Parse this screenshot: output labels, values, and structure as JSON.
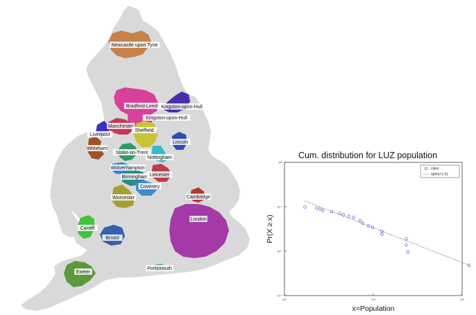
{
  "map": {
    "cities": [
      {
        "name": "Newcastle upon Tyne",
        "color": "#c6824a"
      },
      {
        "name": "Bradford-Leeds",
        "color": "#d9409a"
      },
      {
        "name": "Kingston-upon-Hull",
        "color": "#4b2fa8"
      },
      {
        "name": "Kingston-upon-Hull",
        "color": "#d9409a"
      },
      {
        "name": "Manchester",
        "color": "#c8375a"
      },
      {
        "name": "Sheffield",
        "color": "#c9c436"
      },
      {
        "name": "Liverpool",
        "color": "#3a2fc0"
      },
      {
        "name": "Lincoln",
        "color": "#2b4fb5"
      },
      {
        "name": "Wrexham",
        "color": "#a0502a"
      },
      {
        "name": "Stoke-on-Trent",
        "color": "#2e9a6a"
      },
      {
        "name": "Nottingham",
        "color": "#36b9c6"
      },
      {
        "name": "Wolverhampton",
        "color": "#3a7fd0"
      },
      {
        "name": "Birmingham",
        "color": "#2d8a8a"
      },
      {
        "name": "Leicester",
        "color": "#b8424a"
      },
      {
        "name": "Coventry",
        "color": "#3c8cd0"
      },
      {
        "name": "Worcester",
        "color": "#a3a033"
      },
      {
        "name": "Cambridge",
        "color": "#b03a30"
      },
      {
        "name": "London",
        "color": "#a33aa8"
      },
      {
        "name": "Cardiff",
        "color": "#3fc63a"
      },
      {
        "name": "Bristol",
        "color": "#3462b0"
      },
      {
        "name": "Exeter",
        "color": "#5b9a3a"
      },
      {
        "name": "Portsmouth",
        "color": "#4aa890"
      }
    ],
    "land_color": "#d9d9d9"
  },
  "chart_data": {
    "type": "scatter",
    "title": "Cum. distribution for LUZ population",
    "xlabel": "x=Population",
    "ylabel": "Pr(X ≥ x)",
    "xscale": "log",
    "yscale": "log",
    "xlim": [
      1,
      100
    ],
    "ylim": [
      0.001,
      1
    ],
    "xticks": [
      {
        "v": 1,
        "t": "10⁰"
      },
      {
        "v": 10,
        "t": "10¹"
      },
      {
        "v": 100,
        "t": "10²"
      }
    ],
    "yticks": [
      {
        "v": 1,
        "t": "10⁰"
      },
      {
        "v": 0.1,
        "t": "10⁻¹"
      },
      {
        "v": 0.01,
        "t": "10⁻²"
      },
      {
        "v": 0.001,
        "t": "10⁻³"
      }
    ],
    "series": [
      {
        "name": "cities",
        "marker": "circle",
        "color": "#3b3bd6",
        "x": [
          1.7,
          2.3,
          2.5,
          2.7,
          3.4,
          4.2,
          4.6,
          5.3,
          6.0,
          7.1,
          7.6,
          8.8,
          9.8,
          12.5,
          12.5,
          23.5,
          23.5,
          24.5,
          120
        ],
        "y": [
          0.099,
          0.093,
          0.088,
          0.083,
          0.078,
          0.071,
          0.066,
          0.061,
          0.058,
          0.049,
          0.043,
          0.037,
          0.034,
          0.028,
          0.024,
          0.019,
          0.014,
          0.0095,
          0.0048
        ]
      },
      {
        "name": "alpha=1.61",
        "style": "dashed",
        "color": "#444444",
        "x": [
          1.7,
          120
        ],
        "y": [
          0.135,
          0.0048
        ]
      }
    ],
    "legend": "top-right",
    "grid": false
  }
}
